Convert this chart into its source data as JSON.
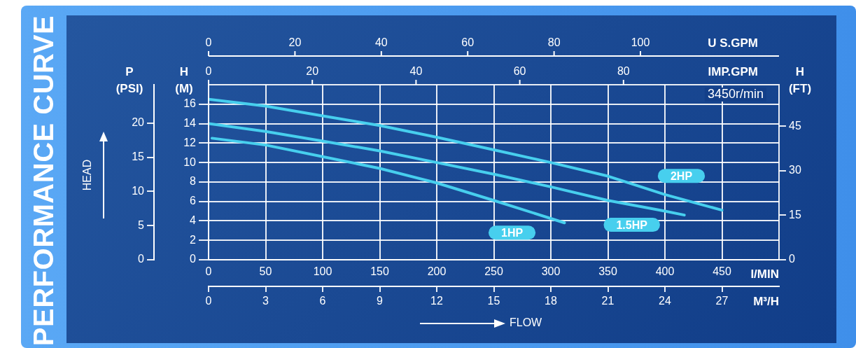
{
  "chart_data": {
    "type": "line",
    "title": "PERFORMANCE CURVE",
    "xlabel": "I/MIN",
    "x2label": "M³/H",
    "ylabel": "H (M)",
    "y2label": "P (PSI)",
    "y3label": "H (FT)",
    "annotations": [
      "3450r/min",
      "HEAD",
      "FLOW",
      "U S.GPM",
      "IMP.GPM",
      "0",
      "20",
      "40",
      "60",
      "80",
      "100",
      "0",
      "20",
      "40",
      "60",
      "80"
    ],
    "xlim": [
      0,
      500
    ],
    "xticks": [
      0,
      50,
      100,
      150,
      200,
      250,
      300,
      350,
      400,
      450
    ],
    "x2lim": [
      0,
      30
    ],
    "x2ticks": [
      0,
      3,
      6,
      9,
      12,
      15,
      18,
      21,
      24,
      27
    ],
    "ylim": [
      0,
      18
    ],
    "yticks": [
      0,
      2,
      4,
      6,
      8,
      10,
      12,
      14,
      16
    ],
    "y2lim": [
      0,
      25.6
    ],
    "y2ticks": [
      0,
      5,
      10,
      15,
      20
    ],
    "y3lim": [
      0,
      59
    ],
    "y3ticks": [
      0,
      15,
      30,
      45
    ],
    "grid": true,
    "legend": false,
    "marker": "none",
    "line_style": "solid",
    "series": [
      {
        "name": "1HP",
        "color": "#47cfee",
        "x": [
          3,
          50,
          100,
          150,
          200,
          250,
          312
        ],
        "values": [
          12.5,
          11.8,
          10.6,
          9.4,
          7.9,
          6.1,
          3.8
        ]
      },
      {
        "name": "1.5HP",
        "color": "#47cfee",
        "x": [
          0,
          50,
          100,
          150,
          200,
          250,
          300,
          350,
          400,
          417
        ],
        "values": [
          14.0,
          13.2,
          12.2,
          11.2,
          10.0,
          8.8,
          7.5,
          6.1,
          5.0,
          4.6
        ]
      },
      {
        "name": "2HP",
        "color": "#47cfee",
        "x": [
          0,
          50,
          100,
          150,
          200,
          250,
          300,
          350,
          400,
          450
        ],
        "values": [
          16.5,
          15.8,
          14.8,
          13.8,
          12.6,
          11.3,
          10.0,
          8.6,
          6.7,
          5.1
        ]
      }
    ]
  }
}
